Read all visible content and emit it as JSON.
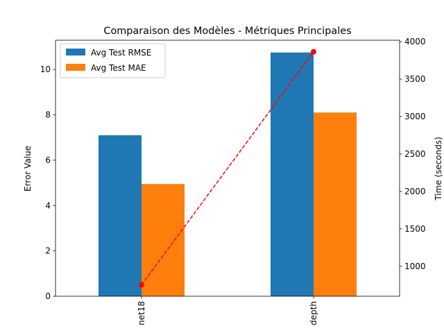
{
  "chart_data": {
    "type": "bar",
    "title": "Comparaison des Modèles - Métriques Principales",
    "categories": [
      "net18",
      "depth"
    ],
    "series": [
      {
        "name": "Avg Test RMSE",
        "values": [
          7.1,
          10.75
        ],
        "color": "#1f77b4"
      },
      {
        "name": "Avg Test MAE",
        "values": [
          4.95,
          8.1
        ],
        "color": "#ff7f0e"
      }
    ],
    "secondary_series": {
      "type": "line",
      "values": [
        752,
        3866
      ],
      "color": "#ff0000",
      "line_style": "dashed",
      "marker": "circle"
    },
    "ylabel": "Error Value",
    "y2label": "Time (seconds)",
    "ylim": [
      0,
      11.29
    ],
    "y2lim": [
      600,
      4020
    ],
    "yticks": [
      0,
      2,
      4,
      6,
      8,
      10
    ],
    "y2ticks": [
      1000,
      1500,
      2000,
      2500,
      3000,
      3500,
      4000
    ],
    "legend_position": "top-left",
    "grid": false
  }
}
